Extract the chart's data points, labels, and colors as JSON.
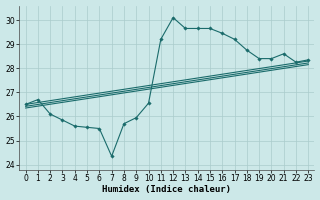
{
  "xlabel": "Humidex (Indice chaleur)",
  "xlim": [
    -0.5,
    23.5
  ],
  "ylim": [
    23.8,
    30.6
  ],
  "yticks": [
    24,
    25,
    26,
    27,
    28,
    29,
    30
  ],
  "xticks": [
    0,
    1,
    2,
    3,
    4,
    5,
    6,
    7,
    8,
    9,
    10,
    11,
    12,
    13,
    14,
    15,
    16,
    17,
    18,
    19,
    20,
    21,
    22,
    23
  ],
  "bg_color": "#cce8e8",
  "line_color": "#1a6b6b",
  "grid_color": "#aacccc",
  "line1_x": [
    0,
    1,
    2,
    3,
    4,
    5,
    6,
    7,
    8,
    9,
    10,
    11,
    12,
    13,
    14,
    15,
    16,
    17,
    18,
    19,
    20,
    21,
    22,
    23
  ],
  "line1_y": [
    26.5,
    26.7,
    26.1,
    25.85,
    25.6,
    25.55,
    25.5,
    24.35,
    25.7,
    25.95,
    26.55,
    29.2,
    30.1,
    29.65,
    29.65,
    29.65,
    29.45,
    29.2,
    28.75,
    28.4,
    28.4,
    28.6,
    28.25,
    28.35
  ],
  "line2_x": [
    0,
    23
  ],
  "line2_y": [
    26.35,
    28.15
  ],
  "line3_x": [
    0,
    23
  ],
  "line3_y": [
    26.5,
    28.3
  ],
  "line4_x": [
    0,
    23
  ],
  "line4_y": [
    26.42,
    28.22
  ],
  "tick_fontsize": 5.5,
  "xlabel_fontsize": 6.5
}
